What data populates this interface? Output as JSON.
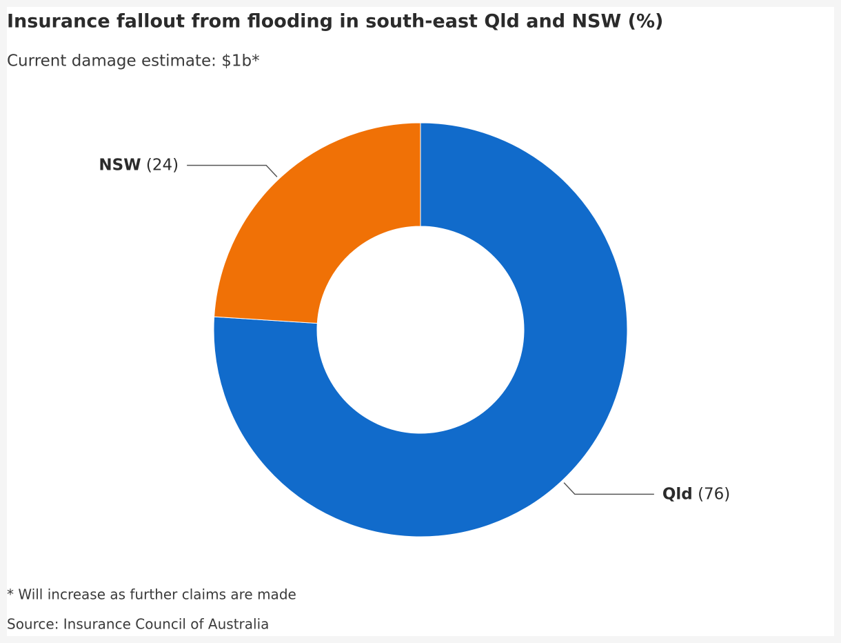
{
  "chart_data": {
    "type": "donut",
    "title": "Insurance fallout from flooding in south-east Qld and NSW (%)",
    "subtitle": "Current damage estimate: $1b*",
    "categories": [
      "Qld",
      "NSW"
    ],
    "values": [
      76,
      24
    ],
    "value_labels": [
      "(76)",
      "(24)"
    ],
    "colors": [
      "#116bcb",
      "#f07106"
    ],
    "footnote": "* Will increase as further claims are made",
    "source": "Source: Insurance Council of Australia"
  }
}
